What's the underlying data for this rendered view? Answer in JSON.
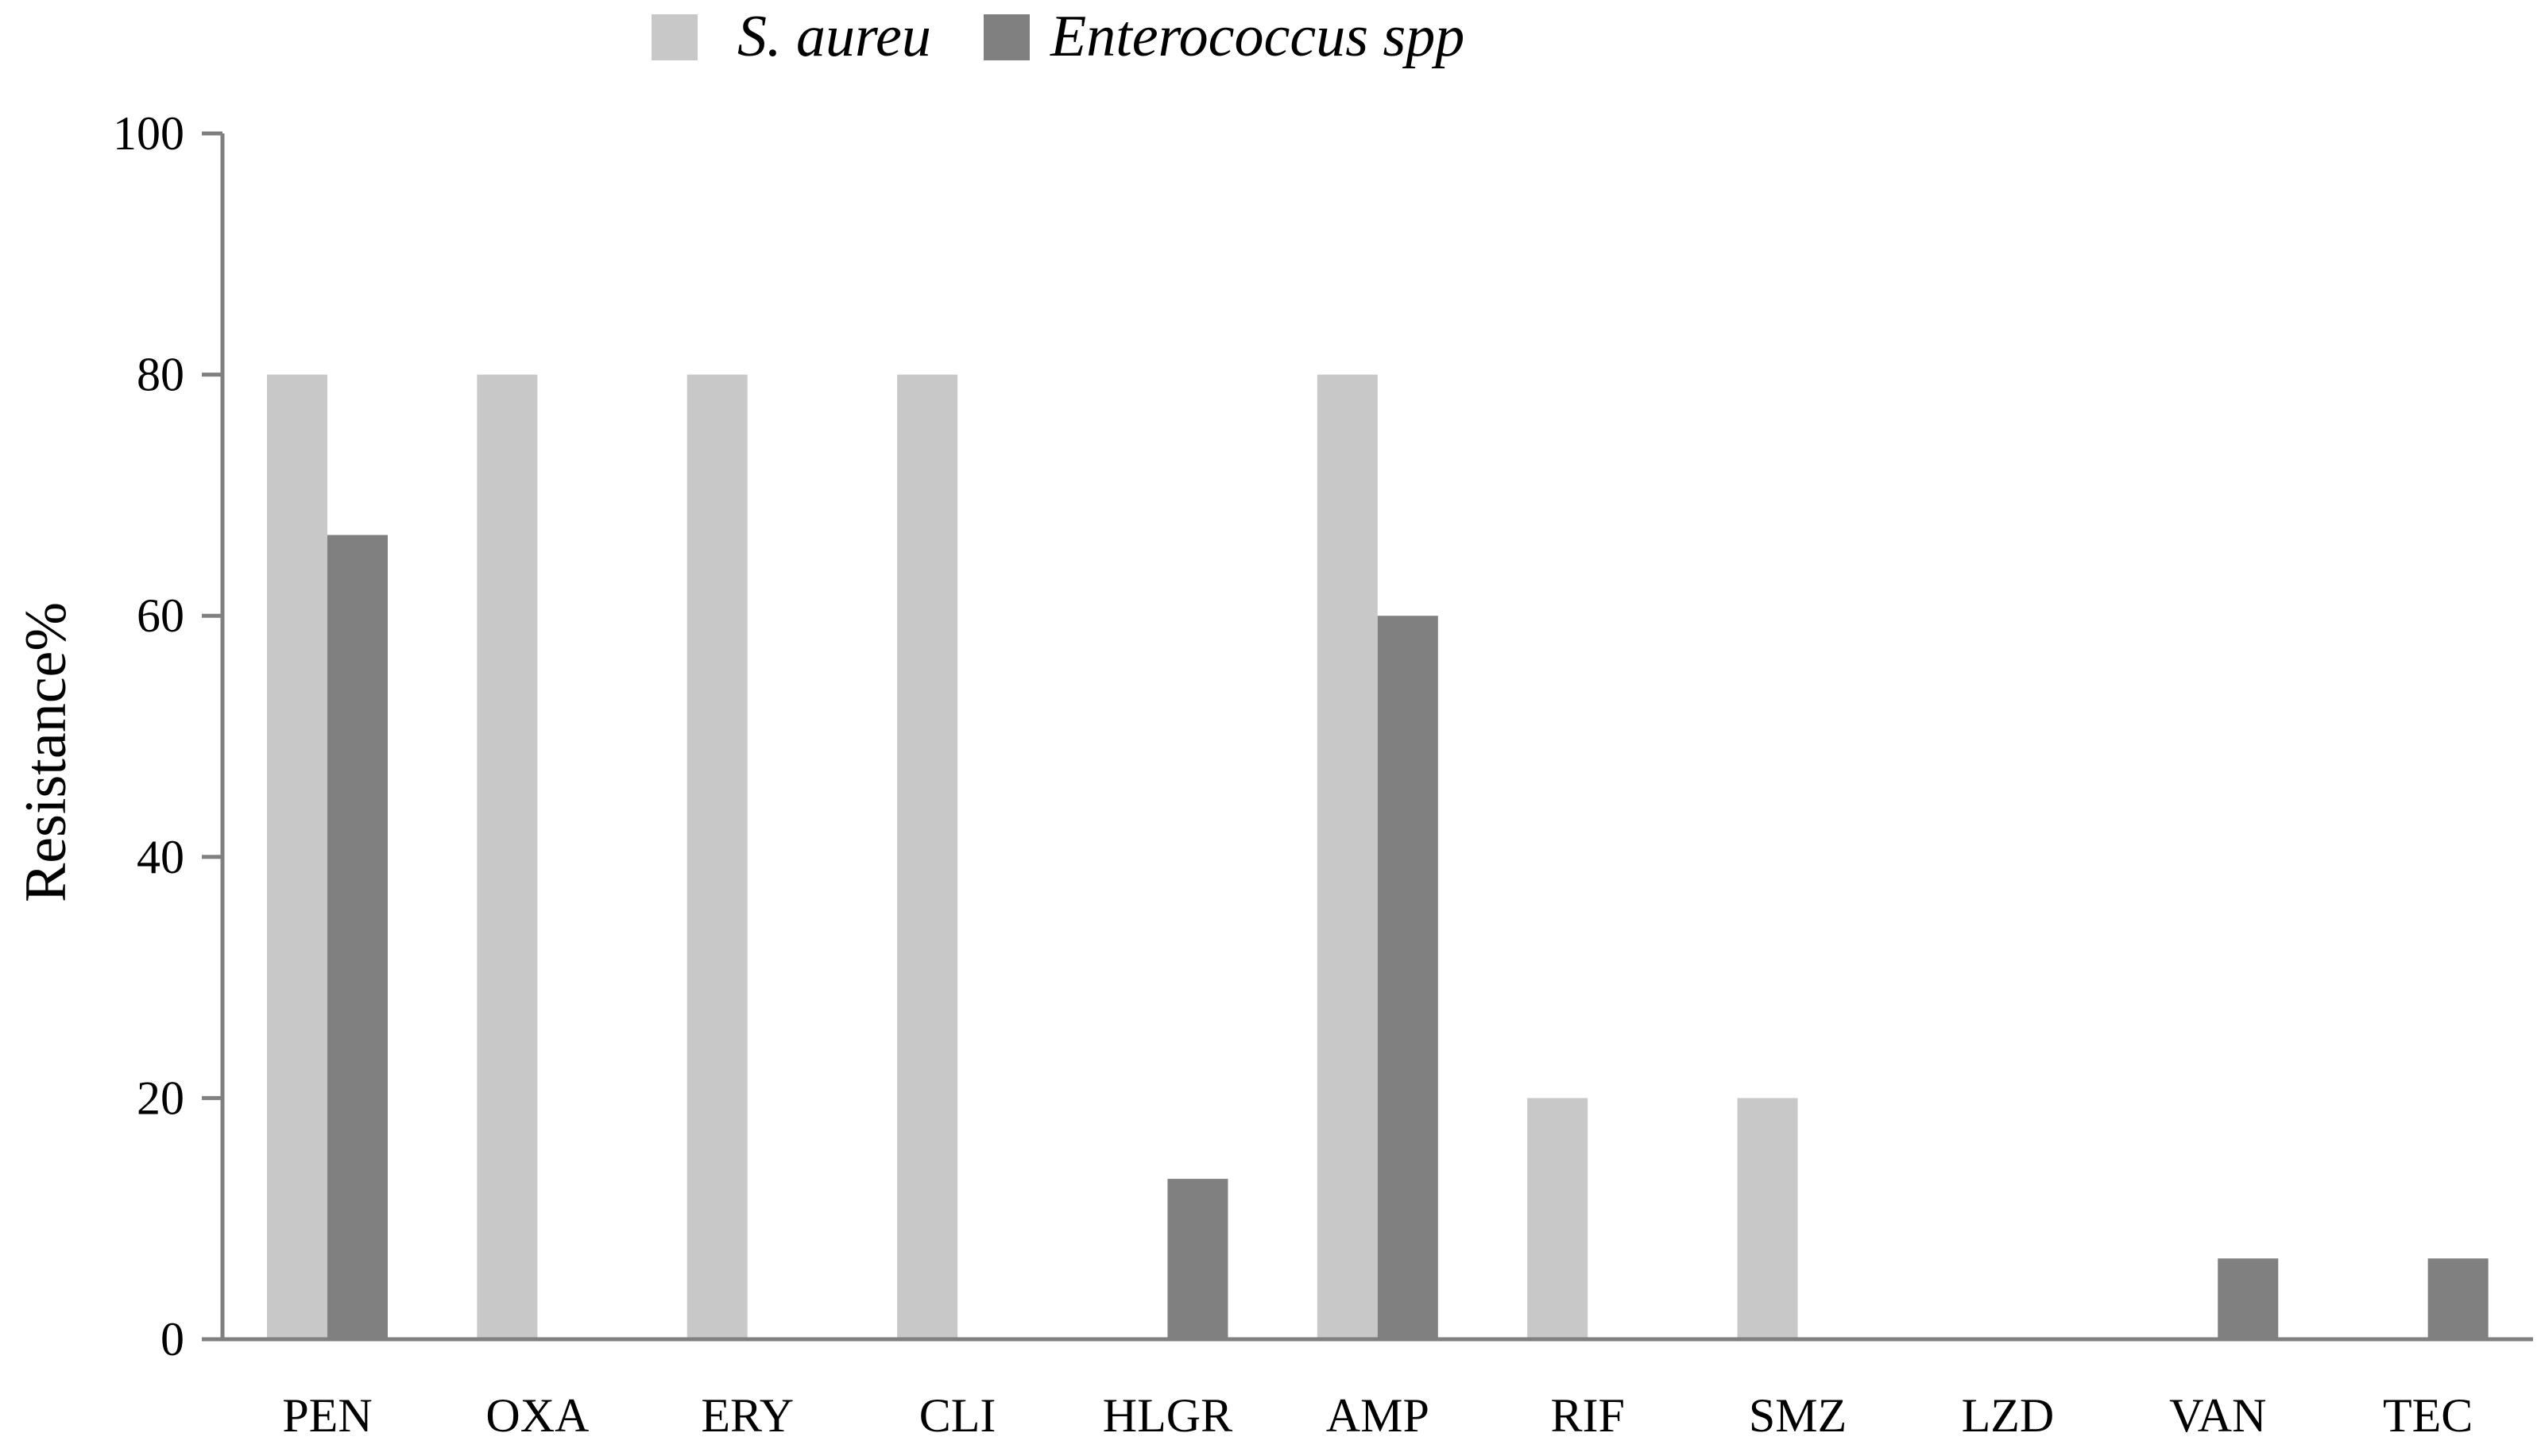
{
  "chart_data": {
    "type": "bar",
    "categories": [
      "PEN",
      "OXA",
      "ERY",
      "CLI",
      "HLGR",
      "AMP",
      "RIF",
      "SMZ",
      "LZD",
      "VAN",
      "TEC"
    ],
    "series": [
      {
        "name": "S. aureu",
        "color": "#c8c8c8",
        "values": [
          80,
          80,
          80,
          80,
          0,
          80,
          20,
          20,
          0,
          0,
          0
        ]
      },
      {
        "name": "Enterococcus spp",
        "color": "#808080",
        "values": [
          66.7,
          0,
          0,
          0,
          13.3,
          60,
          0,
          0,
          0,
          6.7,
          6.7
        ]
      }
    ],
    "ylabel": "Resistance%",
    "xlabel": "",
    "title": "",
    "ylim": [
      0,
      100
    ],
    "yticks": [
      0,
      20,
      40,
      60,
      80,
      100
    ],
    "grid": false,
    "legend_position": "top-center"
  }
}
